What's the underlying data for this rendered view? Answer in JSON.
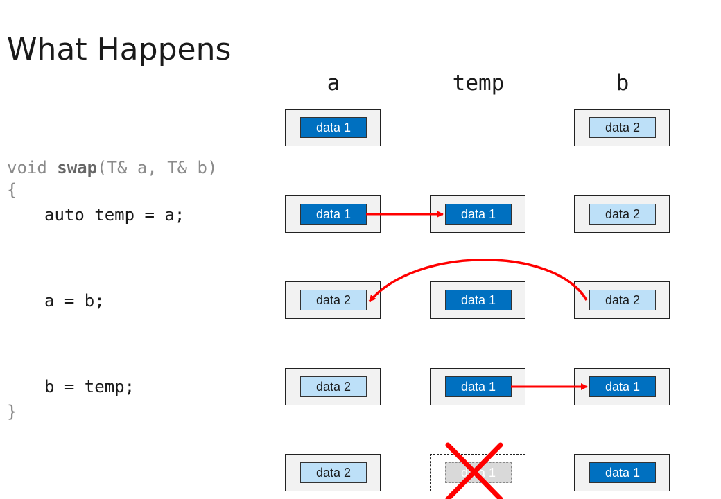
{
  "title": "What Happens",
  "columns": [
    "a",
    "temp",
    "b"
  ],
  "code": {
    "signature_pre": "void ",
    "signature_fn": "swap",
    "signature_post": "(T& a, T& b)",
    "open_brace": "{",
    "line1": "auto temp = a;",
    "line2": "a = b;",
    "line3": "b = temp;",
    "close_brace": "}"
  },
  "rows": [
    {
      "a": {
        "label": "data 1",
        "style": "d1"
      },
      "temp": null,
      "b": {
        "label": "data 2",
        "style": "d2"
      }
    },
    {
      "a": {
        "label": "data 1",
        "style": "d1"
      },
      "temp": {
        "label": "data 1",
        "style": "d1"
      },
      "b": {
        "label": "data 2",
        "style": "d2"
      }
    },
    {
      "a": {
        "label": "data 2",
        "style": "d2"
      },
      "temp": {
        "label": "data 1",
        "style": "d1"
      },
      "b": {
        "label": "data 2",
        "style": "d2"
      }
    },
    {
      "a": {
        "label": "data 2",
        "style": "d2"
      },
      "temp": {
        "label": "data 1",
        "style": "d1"
      },
      "b": {
        "label": "data 1",
        "style": "d1"
      }
    },
    {
      "a": {
        "label": "data 2",
        "style": "d2"
      },
      "temp": {
        "label": "data 1",
        "style": "ghost",
        "destroyed": true
      },
      "b": {
        "label": "data 1",
        "style": "d1"
      }
    }
  ],
  "colors": {
    "data1_fill": "#0070c0",
    "data2_fill": "#bde0f8",
    "arrow": "#ff0000",
    "cross": "#ff0000"
  }
}
